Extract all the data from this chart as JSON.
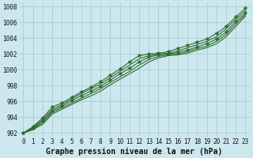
{
  "xlabel": "Graphe pression niveau de la mer (hPa)",
  "xlim": [
    -0.5,
    23.5
  ],
  "ylim": [
    991.5,
    1008.5
  ],
  "yticks": [
    992,
    994,
    996,
    998,
    1000,
    1002,
    1004,
    1006,
    1008
  ],
  "xticks": [
    0,
    1,
    2,
    3,
    4,
    5,
    6,
    7,
    8,
    9,
    10,
    11,
    12,
    13,
    14,
    15,
    16,
    17,
    18,
    19,
    20,
    21,
    22,
    23
  ],
  "bg_color": "#cce8ee",
  "grid_color": "#aaccd4",
  "line_color": "#2d6a2d",
  "lines": [
    [
      992.0,
      992.8,
      993.9,
      995.3,
      995.8,
      996.5,
      997.2,
      997.8,
      998.5,
      999.3,
      1000.1,
      1001.0,
      1001.8,
      1002.0,
      1002.1,
      1002.3,
      1002.7,
      1003.1,
      1003.5,
      1003.9,
      1004.6,
      1005.5,
      1006.7,
      1007.8
    ],
    [
      992.0,
      992.7,
      993.7,
      995.0,
      995.6,
      996.3,
      997.0,
      997.6,
      998.2,
      999.0,
      999.8,
      1000.6,
      1001.4,
      1001.8,
      1002.0,
      1002.1,
      1002.4,
      1002.8,
      1003.2,
      1003.6,
      1004.2,
      1005.2,
      1006.4,
      1007.5
    ],
    [
      992.0,
      992.6,
      993.5,
      994.8,
      995.4,
      996.1,
      996.7,
      997.3,
      997.9,
      998.7,
      999.5,
      1000.2,
      1001.0,
      1001.6,
      1001.9,
      1002.0,
      1002.2,
      1002.5,
      1002.9,
      1003.3,
      1003.9,
      1004.8,
      1006.1,
      1007.2
    ],
    [
      992.0,
      992.5,
      993.3,
      994.6,
      995.2,
      995.8,
      996.4,
      997.0,
      997.6,
      998.4,
      999.1,
      999.8,
      1000.6,
      1001.3,
      1001.7,
      1001.9,
      1002.0,
      1002.3,
      1002.7,
      1003.0,
      1003.6,
      1004.5,
      1005.8,
      1007.0
    ],
    [
      992.0,
      992.4,
      993.1,
      994.4,
      995.0,
      995.6,
      996.2,
      996.7,
      997.3,
      998.1,
      998.8,
      999.5,
      1000.2,
      1001.0,
      1001.5,
      1001.8,
      1001.9,
      1002.1,
      1002.5,
      1002.8,
      1003.3,
      1004.2,
      1005.5,
      1006.8
    ]
  ],
  "marker_lines": [
    0,
    2
  ],
  "marker": "*",
  "marker_size": 3.5,
  "font_family": "monospace",
  "tick_fontsize": 5.5,
  "xlabel_fontsize": 7
}
